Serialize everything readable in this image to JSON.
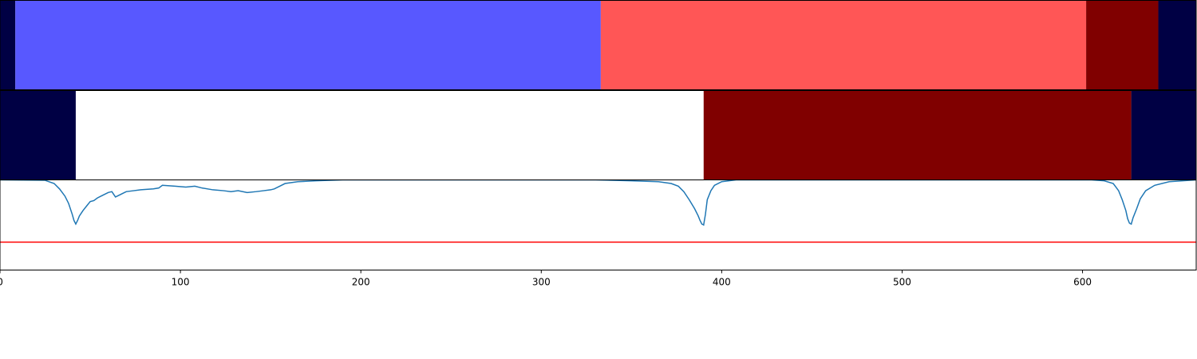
{
  "chart_data": [
    {
      "type": "bar",
      "orientation": "horizontal-segments",
      "xlim": [
        0,
        663
      ],
      "segments": [
        {
          "start": 0,
          "end": 8.5,
          "color": "#000044"
        },
        {
          "start": 8.5,
          "end": 333,
          "color": "#5858ff"
        },
        {
          "start": 333,
          "end": 602,
          "color": "#ff5656"
        },
        {
          "start": 602,
          "end": 642,
          "color": "#800000"
        },
        {
          "start": 642,
          "end": 663,
          "color": "#000044"
        }
      ]
    },
    {
      "type": "bar",
      "orientation": "horizontal-segments",
      "xlim": [
        0,
        663
      ],
      "segments": [
        {
          "start": 0,
          "end": 42,
          "color": "#000044"
        },
        {
          "start": 42,
          "end": 390,
          "color": "#ffffff"
        },
        {
          "start": 390,
          "end": 627,
          "color": "#800000"
        },
        {
          "start": 627,
          "end": 663,
          "color": "#000044"
        }
      ]
    },
    {
      "type": "line",
      "xlim": [
        0,
        663
      ],
      "ylim": [
        0,
        1
      ],
      "grid": false,
      "xticks": [
        0,
        100,
        200,
        300,
        400,
        500,
        600
      ],
      "series": [
        {
          "color": "#1f77b4",
          "points": [
            [
              0,
              1.0
            ],
            [
              25,
              0.995
            ],
            [
              30,
              0.96
            ],
            [
              33,
              0.9
            ],
            [
              36,
              0.82
            ],
            [
              38,
              0.74
            ],
            [
              40,
              0.62
            ],
            [
              41,
              0.55
            ],
            [
              42,
              0.51
            ],
            [
              43,
              0.55
            ],
            [
              44,
              0.6
            ],
            [
              46,
              0.66
            ],
            [
              48,
              0.71
            ],
            [
              50,
              0.76
            ],
            [
              52,
              0.77
            ],
            [
              54,
              0.8
            ],
            [
              56,
              0.82
            ],
            [
              58,
              0.84
            ],
            [
              60,
              0.86
            ],
            [
              62,
              0.87
            ],
            [
              64,
              0.81
            ],
            [
              66,
              0.83
            ],
            [
              68,
              0.85
            ],
            [
              70,
              0.87
            ],
            [
              74,
              0.88
            ],
            [
              78,
              0.89
            ],
            [
              85,
              0.9
            ],
            [
              88,
              0.91
            ],
            [
              90,
              0.94
            ],
            [
              97,
              0.93
            ],
            [
              103,
              0.92
            ],
            [
              108,
              0.93
            ],
            [
              112,
              0.91
            ],
            [
              118,
              0.89
            ],
            [
              124,
              0.88
            ],
            [
              128,
              0.87
            ],
            [
              132,
              0.88
            ],
            [
              137,
              0.86
            ],
            [
              142,
              0.87
            ],
            [
              146,
              0.88
            ],
            [
              150,
              0.89
            ],
            [
              152,
              0.9
            ],
            [
              155,
              0.93
            ],
            [
              158,
              0.96
            ],
            [
              165,
              0.98
            ],
            [
              175,
              0.99
            ],
            [
              190,
              1.0
            ],
            [
              330,
              1.0
            ],
            [
              350,
              0.99
            ],
            [
              365,
              0.98
            ],
            [
              372,
              0.96
            ],
            [
              376,
              0.93
            ],
            [
              379,
              0.87
            ],
            [
              382,
              0.78
            ],
            [
              385,
              0.68
            ],
            [
              387,
              0.6
            ],
            [
              388,
              0.55
            ],
            [
              389,
              0.51
            ],
            [
              390,
              0.5
            ],
            [
              391,
              0.62
            ],
            [
              392,
              0.78
            ],
            [
              394,
              0.88
            ],
            [
              396,
              0.94
            ],
            [
              400,
              0.98
            ],
            [
              408,
              1.0
            ],
            [
              605,
              1.0
            ],
            [
              612,
              0.99
            ],
            [
              617,
              0.96
            ],
            [
              620,
              0.88
            ],
            [
              622,
              0.78
            ],
            [
              624,
              0.66
            ],
            [
              625,
              0.57
            ],
            [
              626,
              0.52
            ],
            [
              627,
              0.51
            ],
            [
              628,
              0.58
            ],
            [
              630,
              0.68
            ],
            [
              632,
              0.79
            ],
            [
              635,
              0.88
            ],
            [
              640,
              0.94
            ],
            [
              648,
              0.98
            ],
            [
              663,
              1.0
            ]
          ]
        },
        {
          "color": "#ff0000",
          "points": [
            [
              0,
              0.31
            ],
            [
              663,
              0.31
            ]
          ]
        }
      ]
    }
  ]
}
